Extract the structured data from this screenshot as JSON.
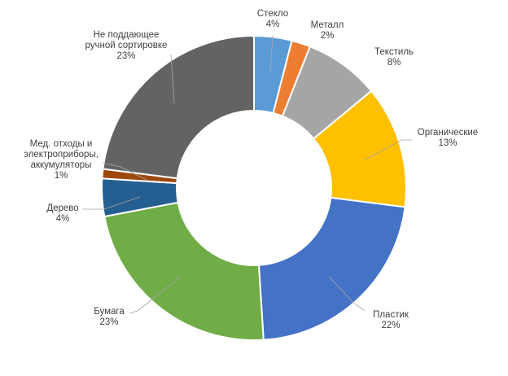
{
  "chart_data": {
    "type": "donut",
    "title": "",
    "slices": [
      {
        "name_lines": [
          "Стекло"
        ],
        "percent_label": "4%",
        "value": 4,
        "color": "#5b9bd5"
      },
      {
        "name_lines": [
          "Металл"
        ],
        "percent_label": "2%",
        "value": 2,
        "color": "#ed7d31"
      },
      {
        "name_lines": [
          "Текстиль"
        ],
        "percent_label": "8%",
        "value": 8,
        "color": "#a5a5a5"
      },
      {
        "name_lines": [
          "Органические"
        ],
        "percent_label": "13%",
        "value": 13,
        "color": "#ffc000"
      },
      {
        "name_lines": [
          "Пластик"
        ],
        "percent_label": "22%",
        "value": 22,
        "color": "#4472c4"
      },
      {
        "name_lines": [
          "Бумага"
        ],
        "percent_label": "23%",
        "value": 23,
        "color": "#70ad47"
      },
      {
        "name_lines": [
          "Дерево"
        ],
        "percent_label": "4%",
        "value": 4,
        "color": "#255e91"
      },
      {
        "name_lines": [
          "Мед. отходы и",
          "электроприборы,",
          "аккумуляторы"
        ],
        "percent_label": "1%",
        "value": 1,
        "color": "#9e480e"
      },
      {
        "name_lines": [
          "Не поддающее",
          "ручной сортировке"
        ],
        "percent_label": "23%",
        "value": 23,
        "color": "#636363"
      }
    ]
  }
}
